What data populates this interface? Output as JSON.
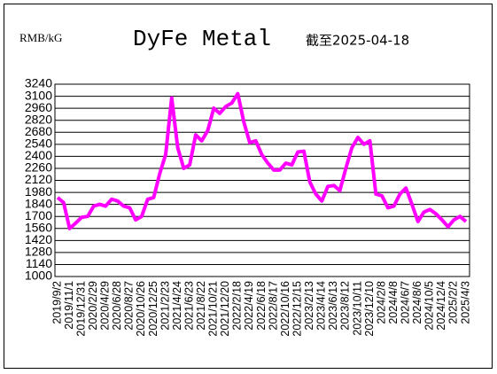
{
  "chart_data": {
    "type": "line",
    "title": "DyFe Metal",
    "unit_label": "RMB/kG",
    "date_note": "截至2025-04-18",
    "categories": [
      "2019/9/2",
      null,
      "2019/11/1",
      null,
      "2019/12/31",
      null,
      "2020/2/29",
      null,
      "2020/4/29",
      null,
      "2020/6/28",
      null,
      "2020/8/27",
      null,
      "2020/10/26",
      null,
      "2020/12/25",
      null,
      "2021/2/23",
      null,
      "2021/4/24",
      null,
      "2021/6/23",
      null,
      "2021/8/22",
      null,
      "2021/10/21",
      null,
      "2021/12/20",
      null,
      "2022/2/18",
      null,
      "2022/4/19",
      null,
      "2022/6/18",
      null,
      "2022/8/17",
      null,
      "2022/10/16",
      null,
      "2022/12/15",
      null,
      "2023/2/13",
      null,
      "2023/4/14",
      null,
      "2023/6/13",
      null,
      "2023/8/12",
      null,
      "2023/10/11",
      null,
      "2023/12/10",
      null,
      "2024/2/8",
      null,
      "2024/4/8",
      null,
      "2024/6/7",
      null,
      "2024/8/6",
      null,
      "2024/10/5",
      null,
      "2024/12/4",
      null,
      "2025/2/2",
      null,
      "2025/4/3"
    ],
    "values": [
      1920,
      1860,
      1560,
      1620,
      1690,
      1700,
      1820,
      1840,
      1820,
      1900,
      1880,
      1820,
      1800,
      1660,
      1700,
      1900,
      1920,
      2200,
      2420,
      3080,
      2500,
      2260,
      2300,
      2650,
      2580,
      2700,
      2960,
      2900,
      2980,
      3020,
      3130,
      2800,
      2560,
      2580,
      2420,
      2320,
      2240,
      2240,
      2320,
      2300,
      2450,
      2460,
      2100,
      1960,
      1880,
      2050,
      2060,
      2000,
      2260,
      2500,
      2620,
      2540,
      2580,
      1960,
      1940,
      1800,
      1820,
      1960,
      2030,
      1840,
      1640,
      1750,
      1780,
      1730,
      1660,
      1580,
      1660,
      1700,
      1640
    ],
    "color": "#ff00ff",
    "ylim": [
      1000,
      3240
    ],
    "yticks": [
      1000,
      1140,
      1280,
      1420,
      1560,
      1700,
      1840,
      1980,
      2120,
      2260,
      2400,
      2540,
      2680,
      2820,
      2960,
      3100,
      3240
    ],
    "grid": true
  }
}
